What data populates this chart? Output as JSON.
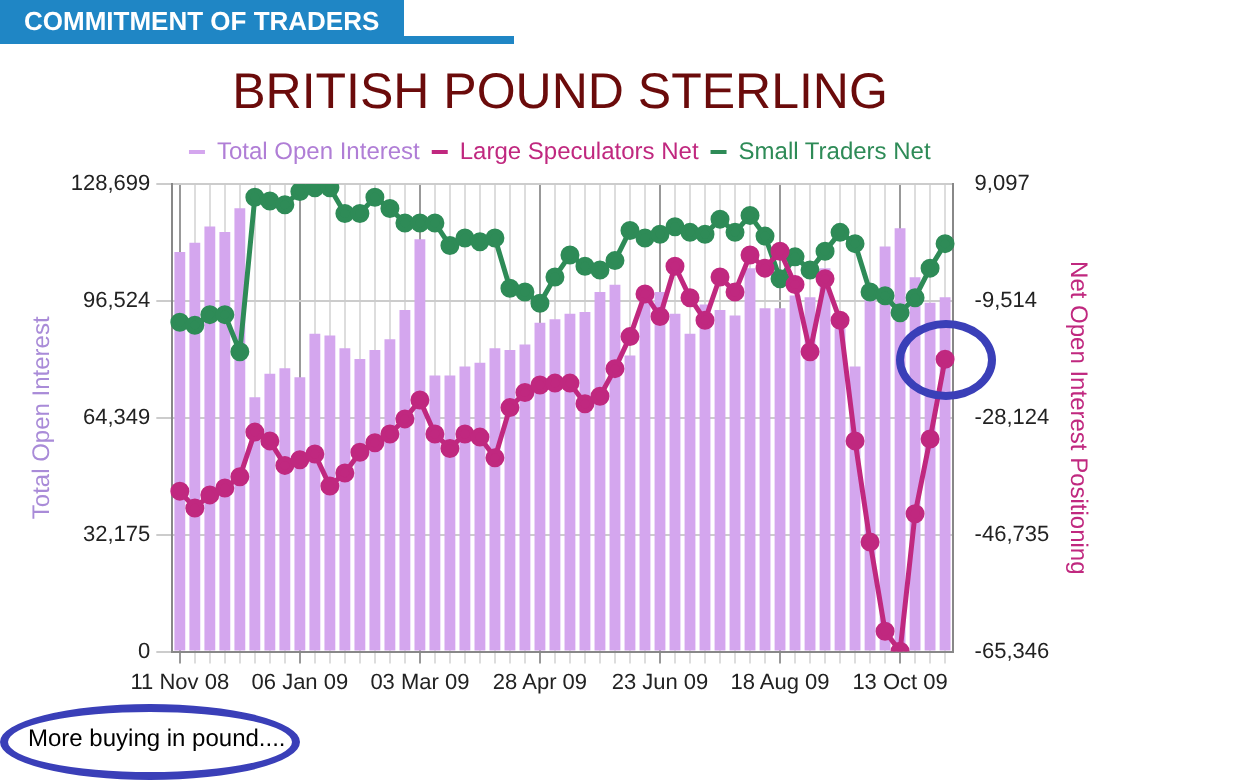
{
  "chart_data": {
    "type": "bar",
    "title": "BRITISH POUND STERLING",
    "ylabel": "Total Open Interest",
    "y2label": "Net Open Interest Positioning",
    "annotations": [
      "COMMITMENT OF TRADERS",
      "More buying in pound...."
    ],
    "categories": [
      "11 Nov 08",
      null,
      null,
      null,
      null,
      null,
      null,
      null,
      "06 Jan 09",
      null,
      null,
      null,
      null,
      null,
      null,
      null,
      "03 Mar 09",
      null,
      null,
      null,
      null,
      null,
      null,
      null,
      "28 Apr 09",
      null,
      null,
      null,
      null,
      null,
      null,
      null,
      "23 Jun 09",
      null,
      null,
      null,
      null,
      null,
      null,
      null,
      "18 Aug 09",
      null,
      null,
      null,
      null,
      null,
      null,
      null,
      "13 Oct 09",
      null,
      null,
      null
    ],
    "series": [
      {
        "name": "Total Open Interest",
        "color": "#d4a6ee",
        "values": [
          110000,
          112500,
          117000,
          115500,
          122000,
          70000,
          76500,
          78000,
          75500,
          87500,
          87000,
          83500,
          80500,
          83000,
          86000,
          94000,
          113500,
          76000,
          76000,
          78500,
          79500,
          83500,
          83000,
          84500,
          90500,
          91500,
          93000,
          93500,
          99000,
          101000,
          81500,
          100500,
          99000,
          93000,
          87500,
          95500,
          94000,
          92500,
          105500,
          94500,
          94500,
          98000,
          97500,
          105500,
          89000,
          78500,
          97900,
          111500,
          116500,
          103000,
          96000,
          97500
        ]
      },
      {
        "name": "Large Speculators Net",
        "type": "line",
        "axis": "y2",
        "color": "#c0287f",
        "values": [
          -39800,
          -42500,
          -40400,
          -39300,
          -37500,
          -30400,
          -31800,
          -35700,
          -34800,
          -33900,
          -39000,
          -36900,
          -33600,
          -32100,
          -30700,
          -28300,
          -25300,
          -30700,
          -33000,
          -30700,
          -31200,
          -34500,
          -26500,
          -24100,
          -22900,
          -22600,
          -22600,
          -25900,
          -24700,
          -20300,
          -15200,
          -8400,
          -12000,
          -4000,
          -9000,
          -12600,
          -5700,
          -8100,
          -2200,
          -4300,
          -1600,
          -6900,
          -17600,
          -6000,
          -12600,
          -31800,
          -47900,
          -62100,
          -65300,
          -43400,
          -31500,
          -18800
        ]
      },
      {
        "name": "Small Traders Net",
        "type": "line",
        "axis": "y2",
        "color": "#2e8b57",
        "values": [
          -12900,
          -13400,
          -11700,
          -11700,
          -17600,
          7000,
          6400,
          5800,
          7900,
          8500,
          8500,
          4400,
          4400,
          7000,
          5200,
          2900,
          2900,
          2900,
          -700,
          500,
          -100,
          500,
          -7500,
          -8100,
          -9900,
          -5700,
          -2200,
          -4000,
          -4600,
          -3100,
          1700,
          500,
          1100,
          2300,
          1400,
          1100,
          3500,
          1400,
          4100,
          800,
          -6000,
          -2500,
          -4600,
          -1600,
          1400,
          -400,
          -8100,
          -8700,
          -11400,
          -9000,
          -4300,
          -400
        ]
      }
    ],
    "ylim": [
      0,
      128699
    ],
    "yticks": [
      0,
      {
        "value": 32175,
        "label": "32,175"
      },
      {
        "value": 64349,
        "label": "64,349"
      },
      {
        "value": 96524,
        "label": "96,524"
      },
      {
        "value": 128699,
        "label": "128,699"
      }
    ],
    "y2lim": [
      -65346,
      9097
    ],
    "y2ticks": [
      {
        "value": -65346,
        "label": "-65,346"
      },
      {
        "value": -46735,
        "label": "-46,735"
      },
      {
        "value": -28124,
        "label": "-28,124"
      },
      {
        "value": -9514,
        "label": "-9,514"
      },
      {
        "value": 9097,
        "label": "9,097"
      }
    ],
    "grid": true,
    "legend": "top",
    "marker": "circle",
    "line_style": "solid"
  }
}
